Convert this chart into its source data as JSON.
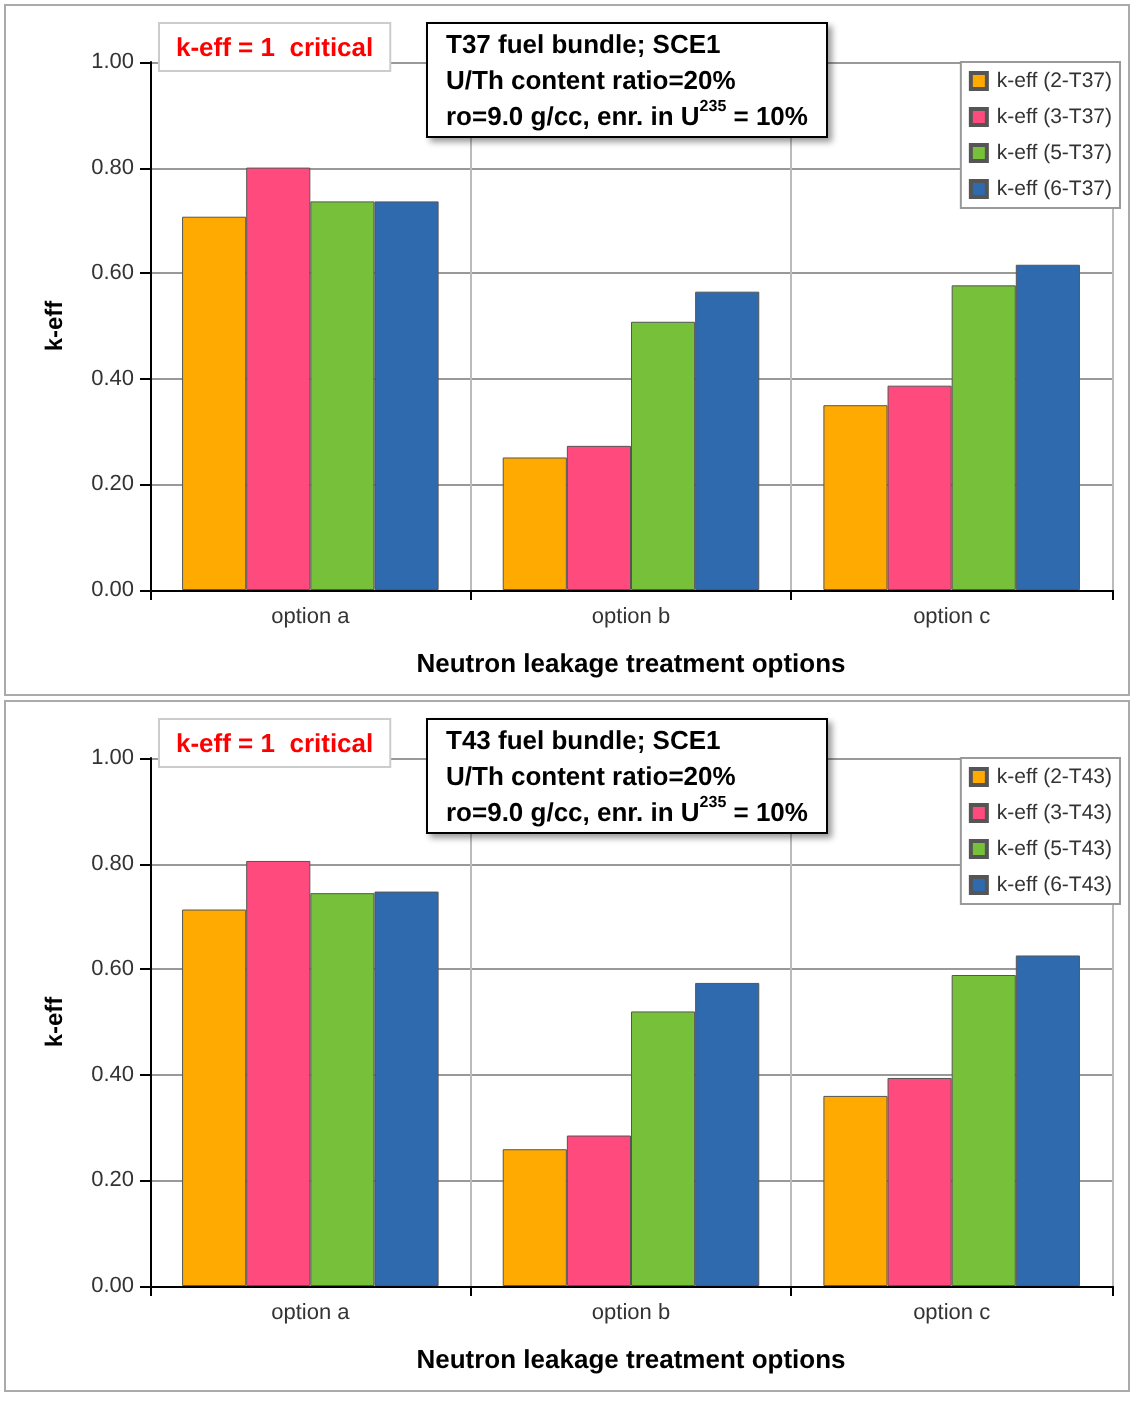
{
  "chart_data": [
    {
      "type": "bar",
      "title": "T37 fuel bundle; SCE1",
      "subtitle": "U/Th content ratio=20%\nro=9.0 g/cc, enr. in U$^{235}$ = 10%",
      "xlabel": "Neutron leakage treatment options",
      "ylabel": "k-eff",
      "annotations": [
        "k-eff = 1  critical"
      ],
      "categories": [
        "option a",
        "option b",
        "option c"
      ],
      "series": [
        {
          "name": "k-eff (2-T37)",
          "color": "#ffaa00",
          "values": [
            0.707,
            0.251,
            0.35
          ]
        },
        {
          "name": "k-eff (3-T37)",
          "color": "#ff4a7d",
          "values": [
            0.8,
            0.273,
            0.387
          ]
        },
        {
          "name": "k-eff (5-T37)",
          "color": "#76c03a",
          "values": [
            0.736,
            0.508,
            0.577
          ]
        },
        {
          "name": "k-eff (6-T37)",
          "color": "#2f6aae",
          "values": [
            0.736,
            0.565,
            0.616
          ]
        }
      ],
      "ylim": [
        0,
        1
      ],
      "yticks": [
        {
          "value": 0,
          "label": "0.00"
        },
        {
          "value": 0.2,
          "label": "0.20"
        },
        {
          "value": 0.4,
          "label": "0.40"
        },
        {
          "value": 0.6,
          "label": "0.60"
        },
        {
          "value": 0.8,
          "label": "0.80"
        },
        {
          "value": 1,
          "label": "1.00"
        }
      ],
      "grid": true,
      "legend": "top right"
    },
    {
      "type": "bar",
      "title": "T43 fuel bundle; SCE1",
      "subtitle": "U/Th content ratio=20%\nro=9.0 g/cc, enr. in U$^{235}$ = 10%",
      "xlabel": "Neutron leakage treatment options",
      "ylabel": "k-eff",
      "annotations": [
        "k-eff = 1  critical"
      ],
      "categories": [
        "option a",
        "option b",
        "option c"
      ],
      "series": [
        {
          "name": "k-eff (2-T43)",
          "color": "#ffaa00",
          "values": [
            0.713,
            0.259,
            0.36
          ]
        },
        {
          "name": "k-eff (3-T43)",
          "color": "#ff4a7d",
          "values": [
            0.805,
            0.285,
            0.394
          ]
        },
        {
          "name": "k-eff (5-T43)",
          "color": "#76c03a",
          "values": [
            0.744,
            0.52,
            0.589
          ]
        },
        {
          "name": "k-eff (6-T43)",
          "color": "#2f6aae",
          "values": [
            0.747,
            0.574,
            0.626
          ]
        }
      ],
      "ylim": [
        0,
        1
      ],
      "yticks": [
        {
          "value": 0,
          "label": "0.00"
        },
        {
          "value": 0.2,
          "label": "0.20"
        },
        {
          "value": 0.4,
          "label": "0.40"
        },
        {
          "value": 0.6,
          "label": "0.60"
        },
        {
          "value": 0.8,
          "label": "0.80"
        },
        {
          "value": 1,
          "label": "1.00"
        }
      ],
      "grid": true,
      "legend": "top right"
    }
  ]
}
